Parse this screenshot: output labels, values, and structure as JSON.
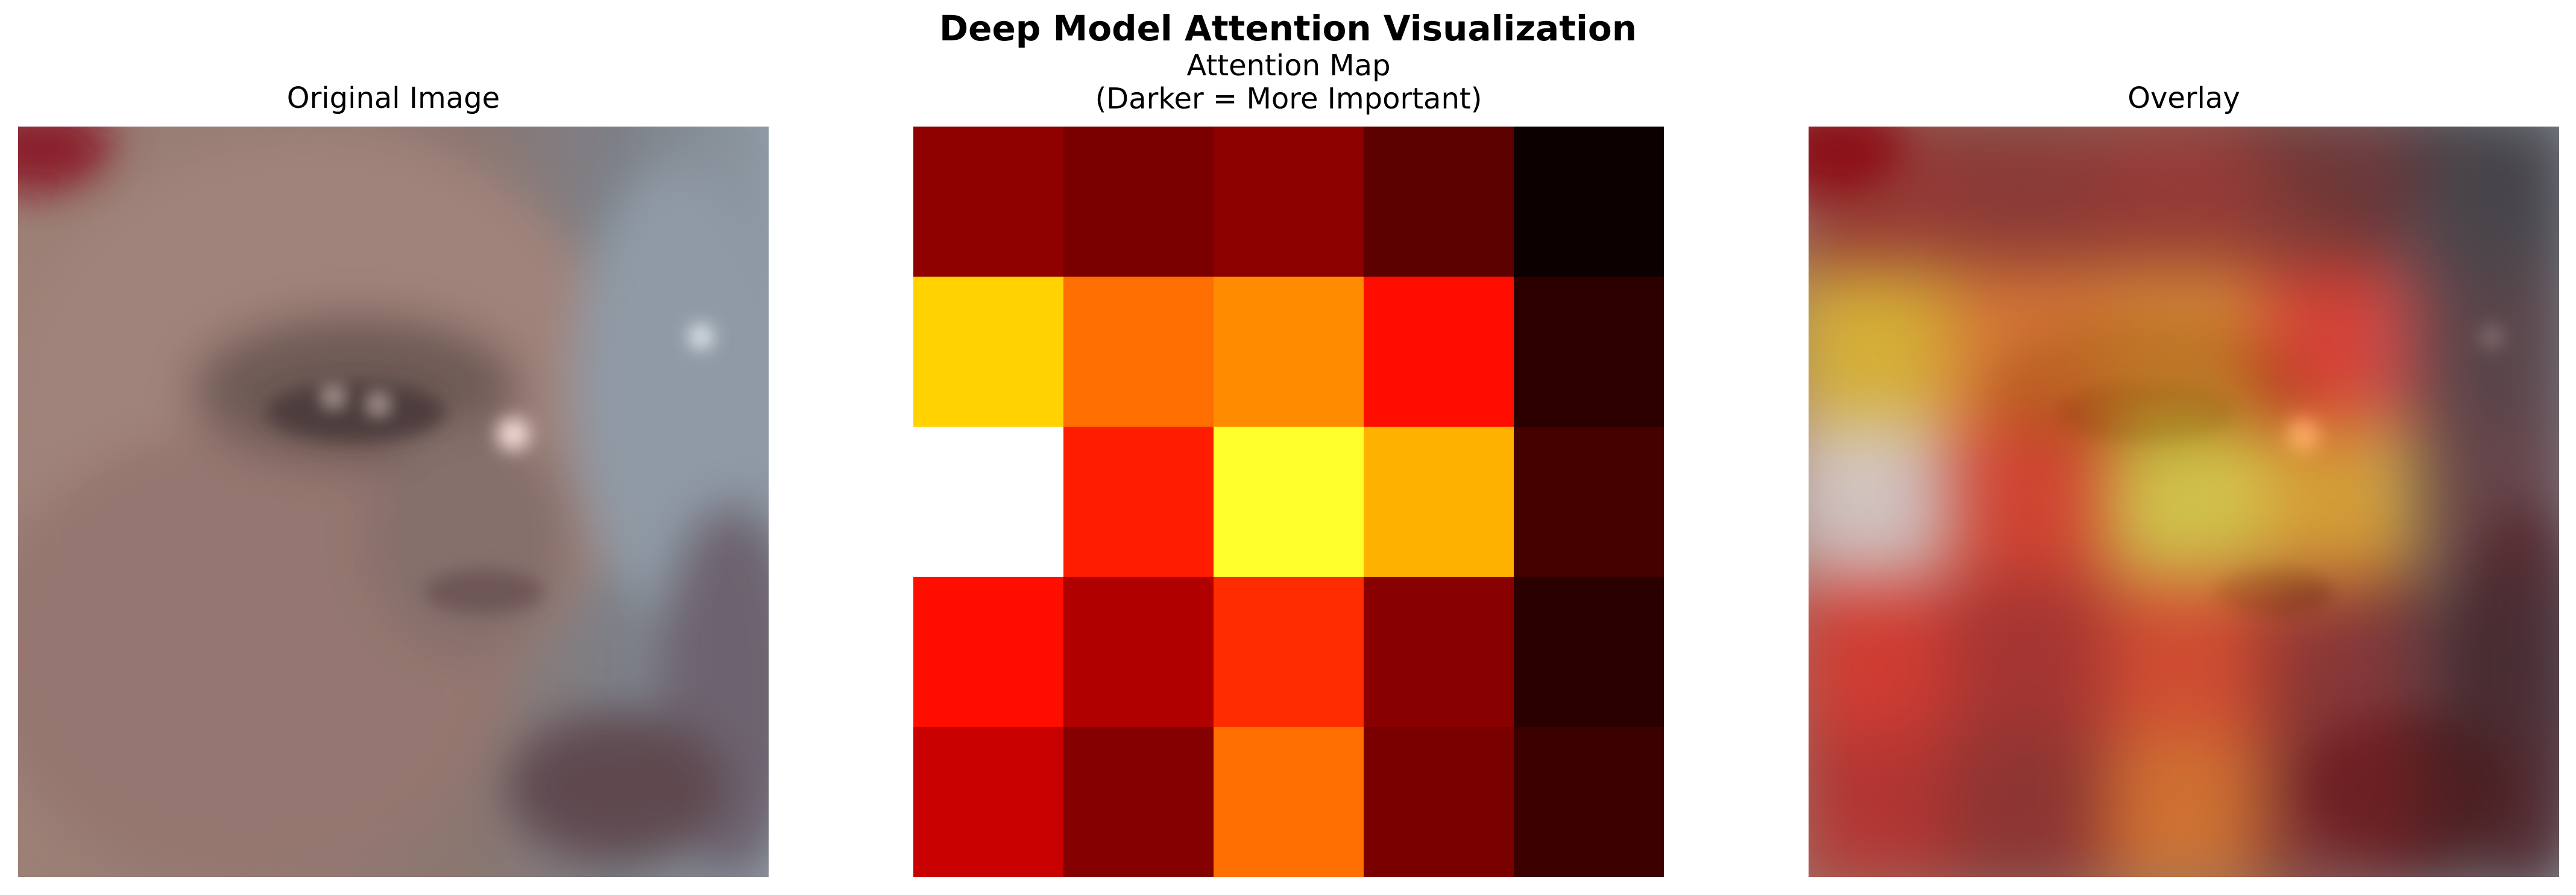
{
  "figure": {
    "title": "Deep Model Attention Visualization"
  },
  "panels": {
    "original": {
      "title": "Original Image"
    },
    "attention": {
      "title_line1": "Attention Map",
      "title_line2": "(Darker = More Important)"
    },
    "overlay": {
      "title": "Overlay"
    }
  },
  "chart_data": {
    "type": "heatmap",
    "title": "Attention Map",
    "rows": 5,
    "cols": 5,
    "colormap": "hot",
    "cell_colors": [
      [
        "#8f0000",
        "#7a0000",
        "#8c0000",
        "#5c0000",
        "#0d0000"
      ],
      [
        "#ffd200",
        "#ff6e00",
        "#ff8c00",
        "#ff0e00",
        "#2d0000"
      ],
      [
        "#ffffff",
        "#ff1c00",
        "#ffff2c",
        "#ffb100",
        "#450000"
      ],
      [
        "#ff0e00",
        "#b00000",
        "#ff2c00",
        "#880000",
        "#2a0000"
      ],
      [
        "#c80000",
        "#850000",
        "#ff6e00",
        "#7a0000",
        "#3c0000"
      ]
    ]
  }
}
